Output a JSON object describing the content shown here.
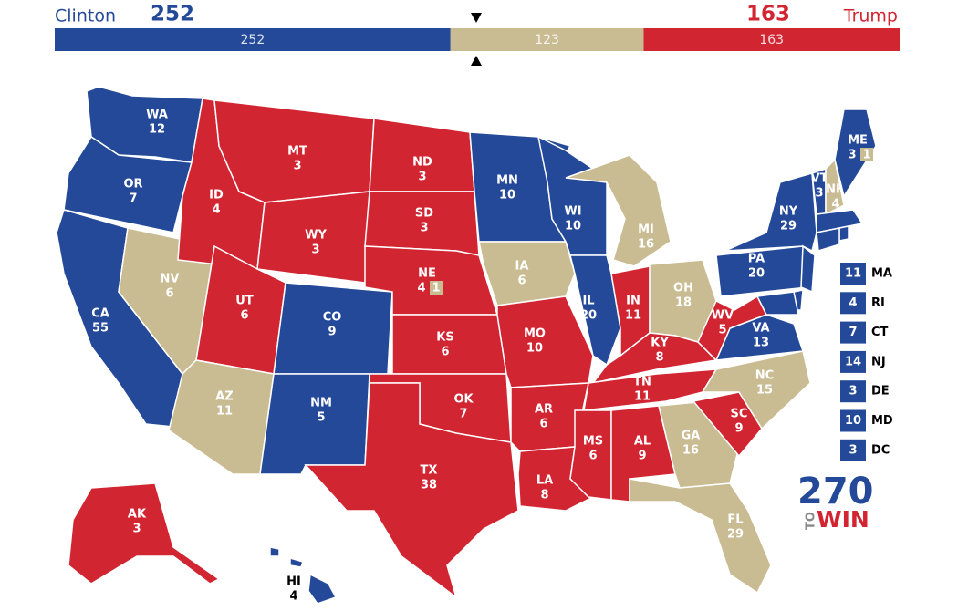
{
  "header": {
    "left": {
      "name": "Clinton",
      "votes": 252,
      "color": "#244999"
    },
    "middle": {
      "votes": 123,
      "color": "#c9bc92"
    },
    "right": {
      "name": "Trump",
      "votes": 163,
      "color": "#d22532"
    }
  },
  "states": [
    {
      "abbr": "WA",
      "votes": 12,
      "color": "#244999"
    },
    {
      "abbr": "OR",
      "votes": 7,
      "color": "#244999"
    },
    {
      "abbr": "CA",
      "votes": 55,
      "color": "#244999"
    },
    {
      "abbr": "NV",
      "votes": 6,
      "color": "#c9bc92"
    },
    {
      "abbr": "ID",
      "votes": 4,
      "color": "#d22532"
    },
    {
      "abbr": "MT",
      "votes": 3,
      "color": "#d22532"
    },
    {
      "abbr": "WY",
      "votes": 3,
      "color": "#d22532"
    },
    {
      "abbr": "UT",
      "votes": 6,
      "color": "#d22532"
    },
    {
      "abbr": "CO",
      "votes": 9,
      "color": "#244999"
    },
    {
      "abbr": "AZ",
      "votes": 11,
      "color": "#c9bc92"
    },
    {
      "abbr": "NM",
      "votes": 5,
      "color": "#244999"
    },
    {
      "abbr": "ND",
      "votes": 3,
      "color": "#d22532"
    },
    {
      "abbr": "SD",
      "votes": 3,
      "color": "#d22532"
    },
    {
      "abbr": "NE",
      "votes": 4,
      "color": "#d22532",
      "split": {
        "votes": 1,
        "color": "#c9bc92"
      }
    },
    {
      "abbr": "KS",
      "votes": 6,
      "color": "#d22532"
    },
    {
      "abbr": "OK",
      "votes": 7,
      "color": "#d22532"
    },
    {
      "abbr": "TX",
      "votes": 38,
      "color": "#d22532"
    },
    {
      "abbr": "MN",
      "votes": 10,
      "color": "#244999"
    },
    {
      "abbr": "IA",
      "votes": 6,
      "color": "#c9bc92"
    },
    {
      "abbr": "MO",
      "votes": 10,
      "color": "#d22532"
    },
    {
      "abbr": "AR",
      "votes": 6,
      "color": "#d22532"
    },
    {
      "abbr": "LA",
      "votes": 8,
      "color": "#d22532"
    },
    {
      "abbr": "WI",
      "votes": 10,
      "color": "#244999"
    },
    {
      "abbr": "IL",
      "votes": 20,
      "color": "#244999"
    },
    {
      "abbr": "MI",
      "votes": 16,
      "color": "#c9bc92"
    },
    {
      "abbr": "IN",
      "votes": 11,
      "color": "#d22532"
    },
    {
      "abbr": "OH",
      "votes": 18,
      "color": "#c9bc92"
    },
    {
      "abbr": "KY",
      "votes": 8,
      "color": "#d22532"
    },
    {
      "abbr": "TN",
      "votes": 11,
      "color": "#d22532"
    },
    {
      "abbr": "MS",
      "votes": 6,
      "color": "#d22532"
    },
    {
      "abbr": "AL",
      "votes": 9,
      "color": "#d22532"
    },
    {
      "abbr": "GA",
      "votes": 16,
      "color": "#c9bc92"
    },
    {
      "abbr": "FL",
      "votes": 29,
      "color": "#c9bc92"
    },
    {
      "abbr": "SC",
      "votes": 9,
      "color": "#d22532"
    },
    {
      "abbr": "NC",
      "votes": 15,
      "color": "#c9bc92"
    },
    {
      "abbr": "VA",
      "votes": 13,
      "color": "#244999"
    },
    {
      "abbr": "WV",
      "votes": 5,
      "color": "#d22532"
    },
    {
      "abbr": "PA",
      "votes": 20,
      "color": "#244999"
    },
    {
      "abbr": "NY",
      "votes": 29,
      "color": "#244999"
    },
    {
      "abbr": "VT",
      "votes": 3,
      "color": "#244999"
    },
    {
      "abbr": "NH",
      "votes": 4,
      "color": "#c9bc92"
    },
    {
      "abbr": "ME",
      "votes": 3,
      "color": "#244999",
      "split": {
        "votes": 1,
        "color": "#c9bc92"
      }
    },
    {
      "abbr": "AK",
      "votes": 3,
      "color": "#d22532"
    },
    {
      "abbr": "HI",
      "votes": 4,
      "color": "#244999"
    }
  ],
  "small_states": [
    {
      "abbr": "MA",
      "votes": 11,
      "color": "#244999"
    },
    {
      "abbr": "RI",
      "votes": 4,
      "color": "#244999"
    },
    {
      "abbr": "CT",
      "votes": 7,
      "color": "#244999"
    },
    {
      "abbr": "NJ",
      "votes": 14,
      "color": "#244999"
    },
    {
      "abbr": "DE",
      "votes": 3,
      "color": "#244999"
    },
    {
      "abbr": "MD",
      "votes": 10,
      "color": "#244999"
    },
    {
      "abbr": "DC",
      "votes": 3,
      "color": "#244999"
    }
  ],
  "logo": {
    "number": "270",
    "to": "TO",
    "win": "WIN"
  }
}
